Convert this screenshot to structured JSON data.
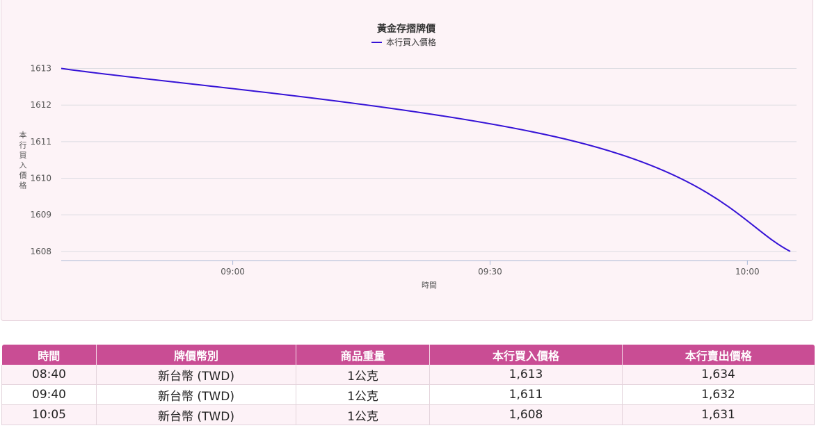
{
  "chart_data": {
    "type": "line",
    "title": "黃金存摺牌價",
    "xlabel": "時間",
    "ylabel": "本行買入價格",
    "x_tick_labels": [
      "09:00",
      "09:30",
      "10:00"
    ],
    "x_tick_minutes": [
      540,
      570,
      600
    ],
    "xlim_minutes": [
      520,
      605
    ],
    "ylim": [
      1607.75,
      1613.2
    ],
    "y_ticks": [
      1608,
      1609,
      1610,
      1611,
      1612,
      1613
    ],
    "grid": true,
    "legend_position": "top-center",
    "series": [
      {
        "name": "本行買入價格",
        "color": "#3512d6",
        "x_labels": [
          "08:40",
          "09:40",
          "10:05"
        ],
        "x_minutes": [
          520,
          580,
          605
        ],
        "values": [
          1613,
          1611,
          1608
        ]
      }
    ]
  },
  "table": {
    "headers": [
      "時間",
      "牌價幣別",
      "商品重量",
      "本行買入價格",
      "本行賣出價格"
    ],
    "rows": [
      [
        "08:40",
        "新台幣 (TWD)",
        "1公克",
        "1,613",
        "1,634"
      ],
      [
        "09:40",
        "新台幣 (TWD)",
        "1公克",
        "1,611",
        "1,632"
      ],
      [
        "10:05",
        "新台幣 (TWD)",
        "1公克",
        "1,608",
        "1,631"
      ]
    ]
  }
}
